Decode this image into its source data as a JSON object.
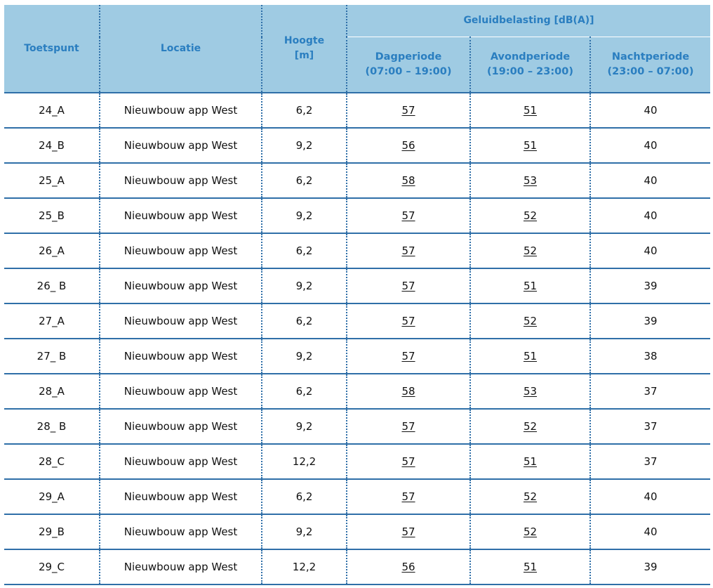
{
  "table": {
    "headers": {
      "toetspunt": "Toetspunt",
      "locatie": "Locatie",
      "hoogte_line1": "Hoogte",
      "hoogte_line2": "[m]",
      "geluidbelasting": "Geluidbelasting [dB(A)]",
      "dag_line1": "Dagperiode",
      "dag_line2": "(07:00 – 19:00)",
      "avond_line1": "Avondperiode",
      "avond_line2": "(19:00 – 23:00)",
      "nacht_line1": "Nachtperiode",
      "nacht_line2": "(23:00 – 07:00)"
    },
    "rows": [
      {
        "toetspunt": "24_A",
        "locatie": "Nieuwbouw app West",
        "hoogte": "6,2",
        "dag": "57",
        "avond": "51",
        "nacht": "40"
      },
      {
        "toetspunt": "24_B",
        "locatie": "Nieuwbouw app West",
        "hoogte": "9,2",
        "dag": "56",
        "avond": "51",
        "nacht": "40"
      },
      {
        "toetspunt": "25_A",
        "locatie": "Nieuwbouw app West",
        "hoogte": "6,2",
        "dag": "58",
        "avond": "53",
        "nacht": "40"
      },
      {
        "toetspunt": "25_B",
        "locatie": "Nieuwbouw app West",
        "hoogte": "9,2",
        "dag": "57",
        "avond": "52",
        "nacht": "40"
      },
      {
        "toetspunt": "26_A",
        "locatie": "Nieuwbouw app West",
        "hoogte": "6,2",
        "dag": "57",
        "avond": "52",
        "nacht": "40"
      },
      {
        "toetspunt": "26_ B",
        "locatie": "Nieuwbouw app West",
        "hoogte": "9,2",
        "dag": "57",
        "avond": "51",
        "nacht": "39"
      },
      {
        "toetspunt": "27_A",
        "locatie": "Nieuwbouw app West",
        "hoogte": "6,2",
        "dag": "57",
        "avond": "52",
        "nacht": "39"
      },
      {
        "toetspunt": "27_ B",
        "locatie": "Nieuwbouw app West",
        "hoogte": "9,2",
        "dag": "57",
        "avond": "51",
        "nacht": "38"
      },
      {
        "toetspunt": "28_A",
        "locatie": "Nieuwbouw app West",
        "hoogte": "6,2",
        "dag": "58",
        "avond": "53",
        "nacht": "37"
      },
      {
        "toetspunt": "28_ B",
        "locatie": "Nieuwbouw app West",
        "hoogte": "9,2",
        "dag": "57",
        "avond": "52",
        "nacht": "37"
      },
      {
        "toetspunt": "28_C",
        "locatie": "Nieuwbouw app West",
        "hoogte": "12,2",
        "dag": "57",
        "avond": "51",
        "nacht": "37"
      },
      {
        "toetspunt": "29_A",
        "locatie": "Nieuwbouw app West",
        "hoogte": "6,2",
        "dag": "57",
        "avond": "52",
        "nacht": "40"
      },
      {
        "toetspunt": "29_B",
        "locatie": "Nieuwbouw app West",
        "hoogte": "9,2",
        "dag": "57",
        "avond": "52",
        "nacht": "40"
      },
      {
        "toetspunt": "29_C",
        "locatie": "Nieuwbouw app West",
        "hoogte": "12,2",
        "dag": "56",
        "avond": "51",
        "nacht": "39"
      }
    ]
  }
}
